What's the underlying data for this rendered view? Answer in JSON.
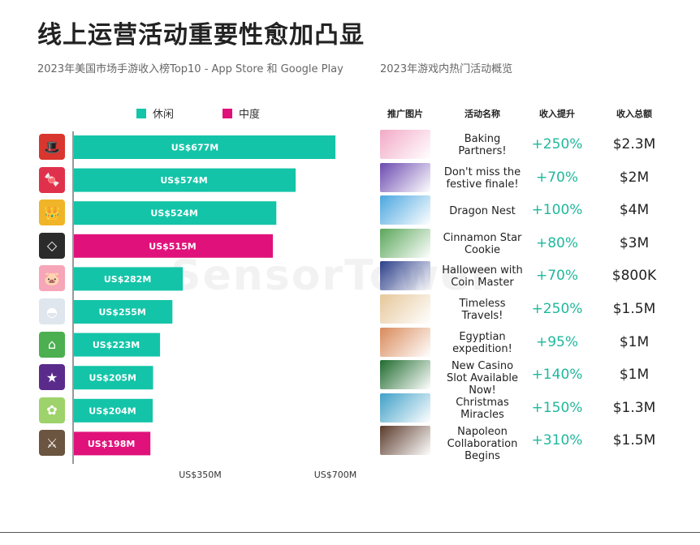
{
  "title": "线上运营活动重要性愈加凸显",
  "left_subtitle": "2023年美国市场手游收入榜Top10 - App Store 和 Google Play",
  "right_subtitle": "2023年游戏内热门活动概览",
  "watermark": "SensorTower",
  "colors": {
    "casual": "#13c4a8",
    "midcore": "#e0117a",
    "boost": "#1fb89c"
  },
  "chart_data": {
    "type": "bar",
    "orientation": "horizontal",
    "series_names": [
      "休闲",
      "中度"
    ],
    "legend_position": "top",
    "x_tick_labels": [
      "US$350M",
      "US$700M"
    ],
    "x_ticks": [
      350,
      700
    ],
    "xlim": [
      0,
      700
    ],
    "grid": false,
    "bars": [
      {
        "value": 677,
        "label": "US$677M",
        "series": "休闲",
        "icon": "monopoly-go-icon"
      },
      {
        "value": 574,
        "label": "US$574M",
        "series": "休闲",
        "icon": "candy-crush-icon"
      },
      {
        "value": 524,
        "label": "US$524M",
        "series": "休闲",
        "icon": "royal-match-icon"
      },
      {
        "value": 515,
        "label": "US$515M",
        "series": "中度",
        "icon": "roblox-icon"
      },
      {
        "value": 282,
        "label": "US$282M",
        "series": "休闲",
        "icon": "coin-master-icon"
      },
      {
        "value": 255,
        "label": "US$255M",
        "series": "休闲",
        "icon": "pokemon-go-icon"
      },
      {
        "value": 223,
        "label": "US$223M",
        "series": "休闲",
        "icon": "township-icon"
      },
      {
        "value": 205,
        "label": "US$205M",
        "series": "休闲",
        "icon": "jackpot-party-icon"
      },
      {
        "value": 204,
        "label": "US$204M",
        "series": "休闲",
        "icon": "gardenscapes-icon"
      },
      {
        "value": 198,
        "label": "US$198M",
        "series": "中度",
        "icon": "strategy-game-icon"
      }
    ]
  },
  "table": {
    "headers": {
      "image": "推广图片",
      "name": "活动名称",
      "boost": "收入提升",
      "total": "收入总额"
    },
    "rows": [
      {
        "name": "Baking Partners!",
        "boost": "+250%",
        "total": "$2.3M",
        "thumb_color": "#f2a9c6"
      },
      {
        "name": "Don't miss the festive finale!",
        "boost": "+70%",
        "total": "$2M",
        "thumb_color": "#6c4ab0"
      },
      {
        "name": "Dragon Nest",
        "boost": "+100%",
        "total": "$4M",
        "thumb_color": "#4aa6e0"
      },
      {
        "name": "Cinnamon Star Cookie",
        "boost": "+80%",
        "total": "$3M",
        "thumb_color": "#5aa65a"
      },
      {
        "name": "Halloween with Coin Master",
        "boost": "+70%",
        "total": "$800K",
        "thumb_color": "#2c3f8a"
      },
      {
        "name": "Timeless Travels!",
        "boost": "+250%",
        "total": "$1.5M",
        "thumb_color": "#e6c79a"
      },
      {
        "name": "Egyptian expedition!",
        "boost": "+95%",
        "total": "$1M",
        "thumb_color": "#d98a5a"
      },
      {
        "name": "New Casino Slot Available Now!",
        "boost": "+140%",
        "total": "$1M",
        "thumb_color": "#1f6b2e"
      },
      {
        "name": "Christmas Miracles",
        "boost": "+150%",
        "total": "$1.3M",
        "thumb_color": "#3fa0c8"
      },
      {
        "name": "Napoleon Collaboration Begins",
        "boost": "+310%",
        "total": "$1.5M",
        "thumb_color": "#5a3a2a"
      }
    ]
  }
}
